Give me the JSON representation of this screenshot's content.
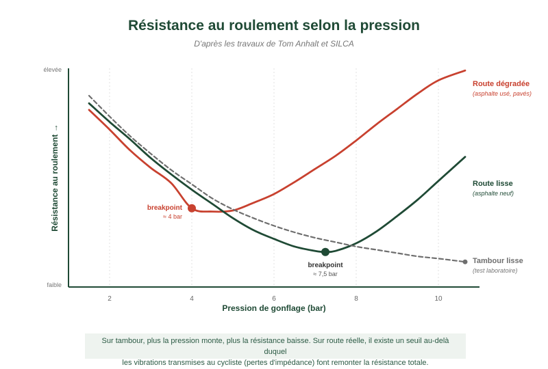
{
  "header": {
    "title": "Résistance au roulement selon la pression",
    "subtitle": "D'après les travaux de Tom Anhalt et SILCA"
  },
  "caption": {
    "line1": "Sur tambour, plus la pression monte, plus la résistance baisse. Sur route réelle, il existe un seuil au-delà duquel",
    "line2": "les vibrations transmises au cycliste (pertes d'impédance) font remonter la résistance totale."
  },
  "colors": {
    "route_degradee": "#c8412f",
    "route_lisse": "#1f4a35",
    "tambour": "#6e6e6e",
    "axis": "#1f4a35"
  },
  "chart_data": {
    "type": "line",
    "xlabel": "Pression de gonflage (bar)",
    "ylabel": "Résistance au roulement →",
    "y_high_label": "élevée",
    "y_low_label": "faible",
    "xlim": [
      1,
      11
    ],
    "ylim": [
      0,
      10
    ],
    "xticks": [
      2,
      4,
      6,
      8,
      10
    ],
    "grid": {
      "vertical": true,
      "horizontal": false
    },
    "series": [
      {
        "id": "route_degradee",
        "name": "Route dégradée",
        "sublabel": "(asphalte usé, pavés)",
        "style": "solid",
        "x": [
          1.5,
          2,
          2.5,
          3,
          3.5,
          4,
          4.5,
          5,
          5.5,
          6,
          6.5,
          7,
          7.5,
          8,
          8.5,
          9,
          9.5,
          10,
          10.65
        ],
        "y": [
          8.1,
          7.2,
          6.25,
          5.45,
          4.75,
          3.6,
          3.45,
          3.5,
          3.85,
          4.25,
          4.8,
          5.4,
          6.0,
          6.7,
          7.45,
          8.15,
          8.85,
          9.45,
          9.9
        ]
      },
      {
        "id": "route_lisse",
        "name": "Route lisse",
        "sublabel": "(asphalte neuf)",
        "style": "solid",
        "x": [
          1.5,
          2,
          2.5,
          3,
          3.5,
          4,
          4.5,
          5,
          5.5,
          6,
          6.5,
          7,
          7.25,
          7.5,
          8,
          8.5,
          9,
          9.5,
          10,
          10.65
        ],
        "y": [
          8.4,
          7.55,
          6.75,
          5.9,
          5.15,
          4.45,
          3.8,
          3.15,
          2.6,
          2.2,
          1.85,
          1.65,
          1.6,
          1.65,
          2.0,
          2.55,
          3.25,
          4.0,
          4.85,
          5.95
        ]
      },
      {
        "id": "tambour",
        "name": "Tambour lisse",
        "sublabel": "(test laboratoire)",
        "style": "dashed",
        "x": [
          1.5,
          2,
          2.5,
          3,
          3.5,
          4,
          4.5,
          5,
          5.5,
          6,
          6.5,
          7,
          7.5,
          8,
          8.5,
          9,
          9.5,
          10,
          10.65
        ],
        "y": [
          8.75,
          7.8,
          6.9,
          6.1,
          5.35,
          4.7,
          4.05,
          3.55,
          3.15,
          2.8,
          2.5,
          2.25,
          2.05,
          1.85,
          1.7,
          1.55,
          1.4,
          1.3,
          1.15
        ]
      }
    ],
    "annotations": [
      {
        "series": "route_degradee",
        "label": "breakpoint",
        "sublabel": "≈ 4 bar",
        "x": 4.0,
        "y": 3.6
      },
      {
        "series": "route_lisse",
        "label": "breakpoint",
        "sublabel": "≈ 7,5 bar",
        "x": 7.25,
        "y": 1.6
      }
    ]
  }
}
